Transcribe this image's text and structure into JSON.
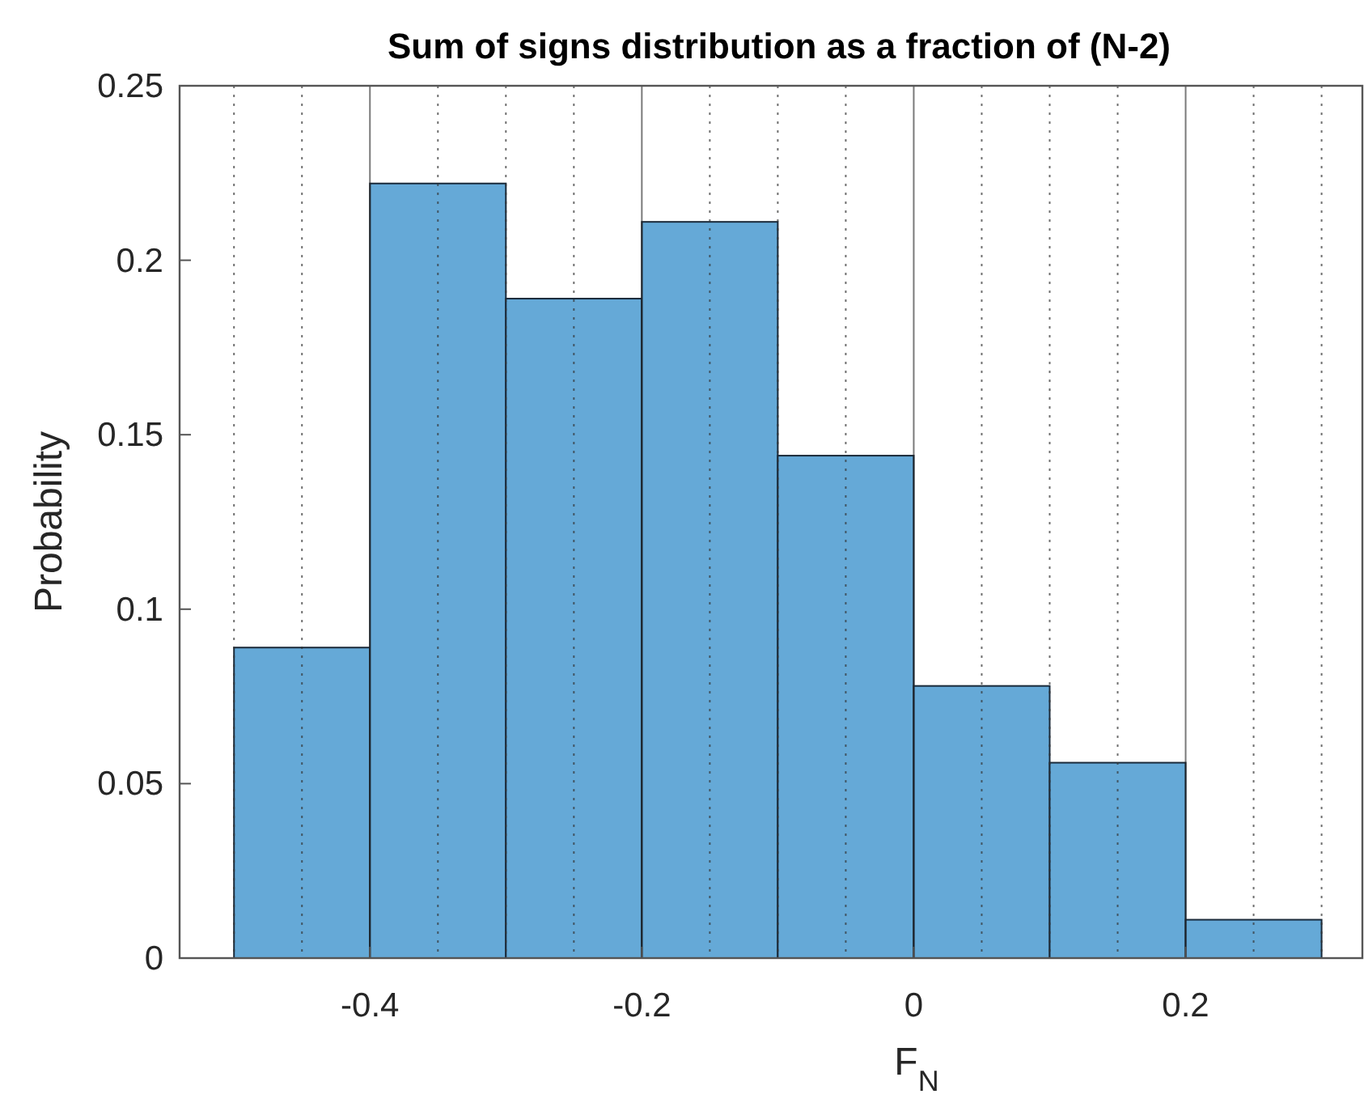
{
  "chart_data": {
    "type": "histogram",
    "title": "Sum of signs distribution as a fraction of (N-2)",
    "xlabel": "F$_{N}$",
    "ylabel": "Probability",
    "bins": [
      -0.5,
      -0.4,
      -0.3,
      -0.2,
      -0.1,
      0,
      0.1,
      0.2,
      0.3
    ],
    "values": [
      0.089,
      0.222,
      0.189,
      0.211,
      0.144,
      0.078,
      0.056,
      0.011
    ],
    "color": "#65a9d7",
    "xlim": [
      -0.54,
      0.33
    ],
    "xticks": [
      {
        "value": -0.5,
        "label": null
      },
      {
        "value": -0.45,
        "label": null
      },
      -0.4,
      {
        "value": -0.35,
        "label": null
      },
      {
        "value": -0.3,
        "label": null
      },
      {
        "value": -0.25,
        "label": null
      },
      -0.2,
      {
        "value": -0.15,
        "label": null
      },
      {
        "value": -0.1,
        "label": null
      },
      {
        "value": -0.05,
        "label": null
      },
      0,
      {
        "value": 0.05,
        "label": null
      },
      {
        "value": 0.1,
        "label": null
      },
      {
        "value": 0.15,
        "label": null
      },
      0.2,
      {
        "value": 0.25,
        "label": null
      },
      {
        "value": 0.3,
        "label": null
      }
    ],
    "ylim": [
      0,
      0.25
    ],
    "yticks": [
      0,
      0.05,
      0.1,
      0.15,
      0.2,
      0.25
    ],
    "grid": "x"
  }
}
